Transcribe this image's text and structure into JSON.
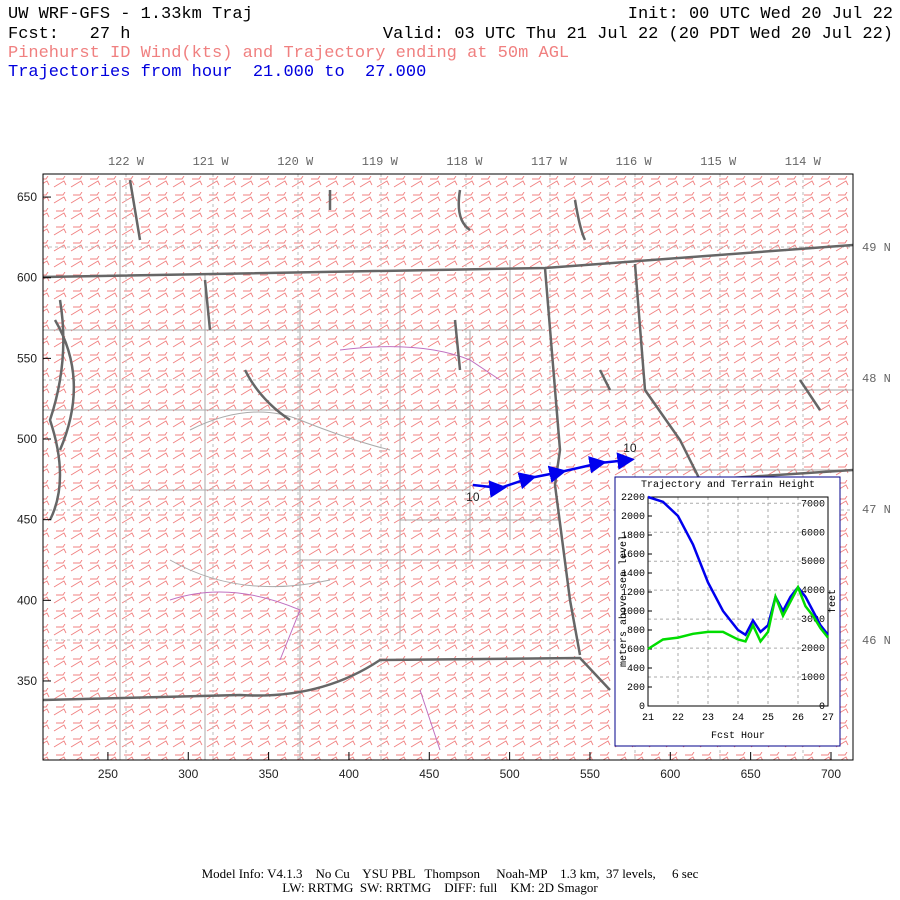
{
  "header": {
    "title": "UW WRF-GFS - 1.33km Traj",
    "init": "Init: 00 UTC Wed 20 Jul 22",
    "fcst": "Fcst:   27 h",
    "valid": "Valid: 03 UTC Thu 21 Jul 22 (20 PDT Wed 20 Jul 22)",
    "subtitle": "Pinehurst ID Wind(kts) and Trajectory ending at 50m AGL",
    "hours": "Trajectories from hour  21.000 to  27.000"
  },
  "map": {
    "type": "line",
    "xlim": [
      209.6,
      713.7
    ],
    "ylim": [
      301,
      664.3
    ],
    "xticks": [
      250,
      300,
      350,
      400,
      450,
      500,
      550,
      600,
      650,
      700
    ],
    "yticks": [
      350,
      400,
      450,
      500,
      550,
      600,
      650
    ],
    "lon_labels": [
      "122 W",
      "121 W",
      "120 W",
      "119 W",
      "118 W",
      "117 W",
      "116 W",
      "115 W",
      "114 W"
    ],
    "lat_labels": [
      "49 N",
      "48 N",
      "47 N",
      "46 N"
    ],
    "trajectory": {
      "color": "#0000ee",
      "x": [
        477.1,
        494,
        512.6,
        531.3,
        556.2,
        573.6
      ],
      "y": [
        471.5,
        469.6,
        475.8,
        479.5,
        485.1,
        487
      ]
    },
    "trajectory_labels": [
      "10",
      "10"
    ]
  },
  "inset": {
    "type": "line",
    "title": "Trajectory and Terrain Height",
    "ylabel": "meters above sea level",
    "y2label": "feet",
    "xlabel": "Fcst Hour",
    "xlim": [
      21,
      27
    ],
    "xticks": [
      21,
      22,
      23,
      24,
      25,
      26,
      27
    ],
    "ylim": [
      0,
      2200
    ],
    "yticks": [
      0,
      200,
      400,
      600,
      800,
      1000,
      1200,
      1400,
      1600,
      1800,
      2000,
      2200
    ],
    "y2lim": [
      0,
      7218
    ],
    "y2ticks": [
      0,
      1000,
      2000,
      3000,
      4000,
      5000,
      6000,
      7000
    ],
    "grid": true,
    "x": [
      21,
      21.5,
      22,
      22.5,
      23,
      23.5,
      24,
      24.25,
      24.5,
      24.75,
      25,
      25.25,
      25.5,
      25.75,
      26,
      26.25,
      26.5,
      26.75,
      27
    ],
    "series": [
      {
        "color": "#0000ee",
        "values": [
          2200,
          2150,
          2000,
          1700,
          1300,
          1000,
          800,
          750,
          900,
          780,
          850,
          1150,
          1000,
          1150,
          1250,
          1150,
          1000,
          850,
          750
        ]
      },
      {
        "color": "#00dd00",
        "values": [
          600,
          700,
          720,
          760,
          780,
          780,
          700,
          680,
          850,
          680,
          780,
          1150,
          950,
          1100,
          1250,
          1050,
          950,
          820,
          720
        ]
      }
    ]
  },
  "footer": {
    "line1": "Model Info: V4.1.3    No Cu    YSU PBL   Thompson     Noah-MP    1.3 km,  37 levels,     6 sec",
    "line2": "LW: RRTMG  SW: RRTMG    DIFF: full    KM: 2D Smagor"
  }
}
